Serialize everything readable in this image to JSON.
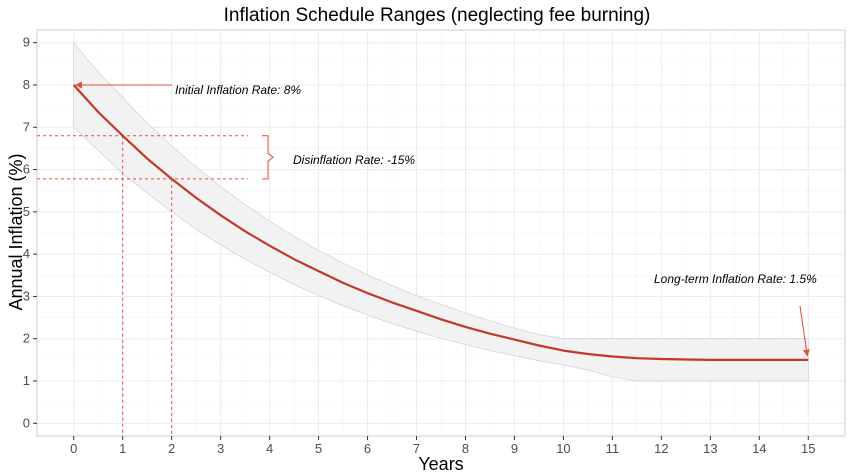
{
  "chart_data": {
    "type": "line",
    "title": "Inflation Schedule Ranges (neglecting fee burning)",
    "xlabel": "Years",
    "ylabel": "Annual Inflation (%)",
    "xlim": [
      -0.75,
      15.75
    ],
    "ylim": [
      -0.3,
      9.3
    ],
    "x_ticks": [
      "0",
      "1",
      "2",
      "3",
      "4",
      "5",
      "6",
      "7",
      "8",
      "9",
      "10",
      "11",
      "12",
      "13",
      "14",
      "15"
    ],
    "y_ticks": [
      "0",
      "1",
      "2",
      "3",
      "4",
      "5",
      "6",
      "7",
      "8",
      "9"
    ],
    "grid": true,
    "colors": {
      "line": "#c0392b",
      "band_fill": "#f2f2f2",
      "band_stroke": "#d0d0d0",
      "guide": "#e74c3c",
      "grid": "#ebebeb"
    },
    "series": [
      {
        "x": [
          0,
          0.5,
          1,
          1.5,
          2,
          2.5,
          3,
          3.5,
          4,
          4.5,
          5,
          5.5,
          6,
          6.5,
          7,
          7.5,
          8,
          8.5,
          9,
          9.5,
          10,
          10.5,
          11,
          11.5,
          12,
          12.5,
          13,
          13.5,
          14,
          14.5,
          15
        ],
        "values": [
          8.0,
          7.36,
          6.8,
          6.26,
          5.78,
          5.33,
          4.92,
          4.54,
          4.2,
          3.88,
          3.6,
          3.32,
          3.08,
          2.86,
          2.66,
          2.46,
          2.28,
          2.12,
          1.98,
          1.84,
          1.72,
          1.64,
          1.58,
          1.54,
          1.52,
          1.51,
          1.5,
          1.5,
          1.5,
          1.5,
          1.5
        ]
      }
    ],
    "band": {
      "x": [
        0,
        0.5,
        1,
        1.5,
        2,
        2.5,
        3,
        3.5,
        4,
        4.5,
        5,
        5.5,
        6,
        6.5,
        7,
        7.5,
        8,
        8.5,
        9,
        9.5,
        10,
        10.5,
        11,
        11.5,
        12,
        12.5,
        13,
        13.5,
        14,
        14.5,
        15
      ],
      "upper": [
        9.0,
        8.3,
        7.7,
        7.1,
        6.56,
        6.06,
        5.6,
        5.17,
        4.78,
        4.42,
        4.09,
        3.79,
        3.51,
        3.26,
        3.02,
        2.81,
        2.61,
        2.42,
        2.25,
        2.1,
        2.0,
        2.0,
        2.0,
        2.0,
        2.0,
        2.0,
        2.0,
        2.0,
        2.0,
        2.0,
        2.0
      ],
      "lower": [
        7.0,
        6.45,
        5.9,
        5.45,
        5.0,
        4.59,
        4.22,
        3.88,
        3.57,
        3.28,
        3.02,
        2.78,
        2.56,
        2.36,
        2.18,
        2.01,
        1.86,
        1.72,
        1.6,
        1.48,
        1.38,
        1.26,
        1.1,
        1.0,
        1.0,
        1.0,
        1.0,
        1.0,
        1.0,
        1.0,
        1.0
      ]
    },
    "guides": [
      {
        "x": 1,
        "y": 6.8
      },
      {
        "x": 2,
        "y": 5.78
      }
    ],
    "annotations": [
      {
        "id": "initial",
        "text": "Initial Inflation Rate: 8%",
        "x": 0,
        "y": 8.0
      },
      {
        "id": "disinflation",
        "text": "Disinflation Rate: -15%"
      },
      {
        "id": "longterm",
        "text": "Long-term Inflation Rate: 1.5%",
        "x": 15,
        "y": 1.5
      }
    ]
  }
}
